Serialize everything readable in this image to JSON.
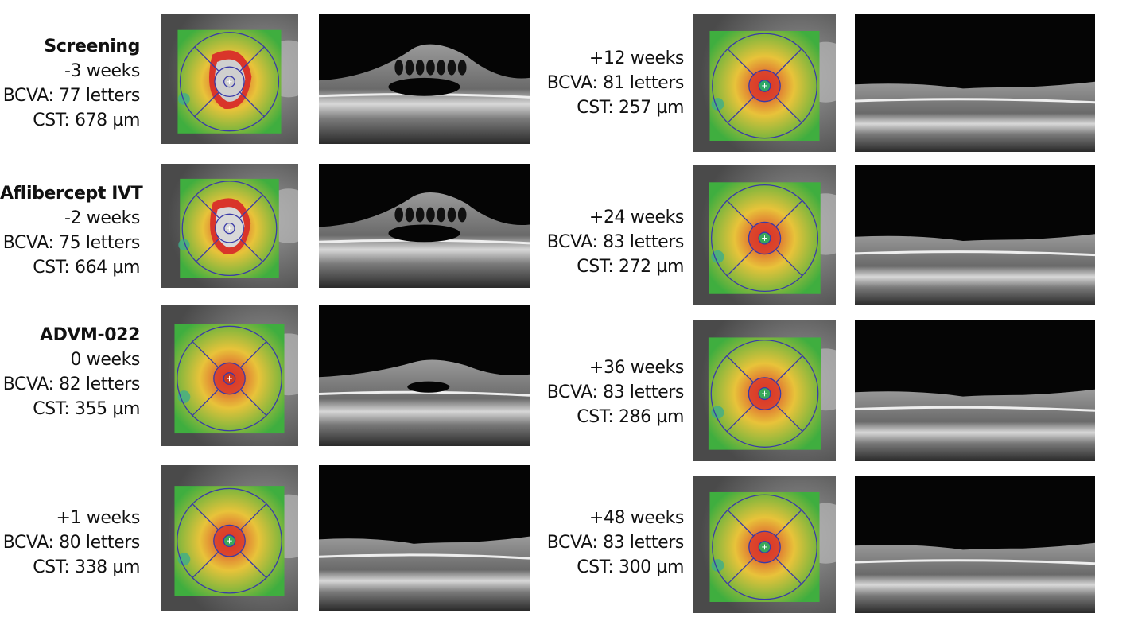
{
  "visits": [
    {
      "title": "Screening",
      "time": "-3 weeks",
      "bcva": "BCVA: 77 letters",
      "cst": "CST: 678 µm",
      "map_center": "#cfcfcf",
      "edema": 3
    },
    {
      "title": "Aflibercept IVT",
      "time": "-2 weeks",
      "bcva": "BCVA: 75 letters",
      "cst": "CST: 664 µm",
      "map_center": "#d8d8d8",
      "edema": 3
    },
    {
      "title": "ADVM-022",
      "time": "0 weeks",
      "bcva": "BCVA: 82 letters",
      "cst": "CST: 355 µm",
      "map_center": "#cc3a22",
      "edema": 1
    },
    {
      "title": "",
      "time": "+1 weeks",
      "bcva": "BCVA: 80 letters",
      "cst": "CST: 338 µm",
      "map_center": "#3aa85a",
      "edema": 0
    },
    {
      "title": "",
      "time": "+12 weeks",
      "bcva": "BCVA: 81 letters",
      "cst": "CST: 257 µm",
      "map_center": "#2fa866",
      "edema": 0
    },
    {
      "title": "",
      "time": "+24 weeks",
      "bcva": "BCVA: 83 letters",
      "cst": "CST: 272 µm",
      "map_center": "#3aa85a",
      "edema": 0
    },
    {
      "title": "",
      "time": "+36 weeks",
      "bcva": "BCVA: 83 letters",
      "cst": "CST: 286 µm",
      "map_center": "#3aa85a",
      "edema": 0
    },
    {
      "title": "",
      "time": "+48 weeks",
      "bcva": "BCVA: 83 letters",
      "cst": "CST: 300 µm",
      "map_center": "#3aa85a",
      "edema": 0
    }
  ],
  "colors": {
    "map_red": "#d9352a",
    "map_yellow": "#e8c33a",
    "map_green": "#3fae3f",
    "grid_blue": "#3a3aa8"
  }
}
